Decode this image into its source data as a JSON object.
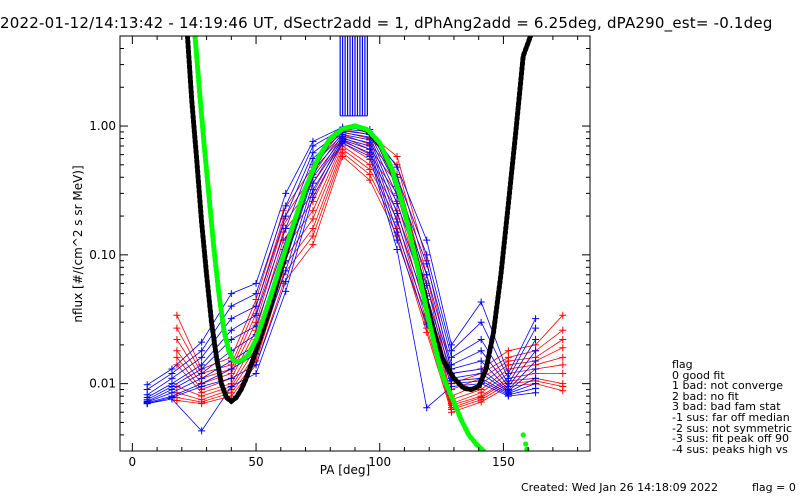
{
  "header": {
    "title": "2022-01-12/14:13:42 - 14:19:46 UT, dSectr2add = 1, dPhAng2add = 6.25deg, dPA290_est=  -0.1deg"
  },
  "footer": {
    "created": "Created: Wed Jan 26 14:18:09 2022",
    "flag": "flag = 0"
  },
  "legend": {
    "title": "flag",
    "items": [
      " 0 good fit",
      " 1 bad: not converge",
      " 2 bad: no fit",
      " 3 bad: bad fam stat",
      "-1 sus: far off median",
      "-2 sus: not symmetric",
      "-3 sus: fit peak off 90",
      "-4 sus: peaks high vs"
    ]
  },
  "chart_data": {
    "type": "line",
    "title": "2022-01-12/14:13:42 - 14:19:46 UT, dSectr2add = 1, dPhAng2add = 6.25deg, dPA290_est=  -0.1deg",
    "xlabel": "PA [deg]",
    "ylabel": "nflux [#/(cm^2 s sr MeV)]",
    "xlim": [
      -5,
      185
    ],
    "ylim": [
      0.003,
      5
    ],
    "yscale": "log",
    "xticks": [
      0,
      50,
      100,
      150
    ],
    "yticks": [
      0.01,
      0.1,
      1.0
    ],
    "xtick_labels": [
      "0",
      "50",
      "100",
      "150"
    ],
    "ytick_labels": [
      "0.01",
      "0.10",
      "1.00"
    ],
    "colors": {
      "red": "#ff0000",
      "blue": "#0000ff",
      "black": "#000000",
      "green": "#00ff00"
    },
    "series": [
      {
        "color": "#ff0000",
        "marker": "+",
        "x": [
          18,
          28,
          40,
          50,
          61,
          73,
          85,
          96,
          107,
          119,
          129,
          141,
          152,
          163,
          174
        ],
        "lines": [
          [
            0.034,
            0.013,
            0.016,
            0.045,
            0.22,
            0.48,
            0.94,
            0.86,
            0.58,
            0.09,
            0.012,
            0.013,
            0.018,
            0.02,
            0.034
          ],
          [
            0.027,
            0.012,
            0.014,
            0.04,
            0.19,
            0.42,
            0.9,
            0.8,
            0.5,
            0.07,
            0.01,
            0.012,
            0.016,
            0.018,
            0.026
          ],
          [
            0.022,
            0.011,
            0.013,
            0.035,
            0.17,
            0.36,
            0.86,
            0.72,
            0.42,
            0.06,
            0.009,
            0.011,
            0.015,
            0.016,
            0.022
          ],
          [
            0.018,
            0.01,
            0.012,
            0.03,
            0.15,
            0.3,
            0.82,
            0.66,
            0.36,
            0.05,
            0.008,
            0.01,
            0.014,
            0.015,
            0.019
          ],
          [
            0.016,
            0.009,
            0.011,
            0.026,
            0.13,
            0.26,
            0.78,
            0.6,
            0.3,
            0.045,
            0.0075,
            0.009,
            0.013,
            0.014,
            0.016
          ],
          [
            0.014,
            0.0085,
            0.01,
            0.022,
            0.11,
            0.22,
            0.74,
            0.55,
            0.26,
            0.04,
            0.007,
            0.0085,
            0.012,
            0.013,
            0.014
          ],
          [
            0.0095,
            0.008,
            0.0095,
            0.019,
            0.09,
            0.19,
            0.7,
            0.5,
            0.22,
            0.035,
            0.0068,
            0.008,
            0.011,
            0.012,
            0.012
          ],
          [
            0.0085,
            0.0075,
            0.009,
            0.017,
            0.08,
            0.16,
            0.66,
            0.46,
            0.19,
            0.03,
            0.0065,
            0.0078,
            0.0105,
            0.011,
            0.01
          ],
          [
            0.0078,
            0.0072,
            0.0085,
            0.015,
            0.07,
            0.14,
            0.62,
            0.42,
            0.16,
            0.027,
            0.0063,
            0.0075,
            0.01,
            0.0105,
            0.0095
          ],
          [
            0.0074,
            0.007,
            0.008,
            0.014,
            0.06,
            0.12,
            0.58,
            0.38,
            0.14,
            0.025,
            0.006,
            0.0072,
            0.0095,
            0.01,
            0.0088
          ]
        ]
      },
      {
        "color": "#0000ff",
        "marker": "+",
        "x": [
          6,
          16,
          28,
          40,
          50,
          62,
          73,
          85,
          96,
          107,
          119,
          129,
          141,
          152,
          163
        ],
        "lines": [
          [
            0.0098,
            0.013,
            0.021,
            0.05,
            0.06,
            0.3,
            0.76,
            0.98,
            0.94,
            0.48,
            0.13,
            0.02,
            0.043,
            0.012,
            0.032
          ],
          [
            0.009,
            0.012,
            0.018,
            0.04,
            0.05,
            0.24,
            0.7,
            0.95,
            0.9,
            0.4,
            0.1,
            0.018,
            0.03,
            0.011,
            0.027
          ],
          [
            0.0082,
            0.011,
            0.016,
            0.032,
            0.04,
            0.2,
            0.62,
            0.92,
            0.86,
            0.34,
            0.085,
            0.016,
            0.022,
            0.01,
            0.022
          ],
          [
            0.0078,
            0.01,
            0.014,
            0.026,
            0.034,
            0.16,
            0.56,
            0.89,
            0.82,
            0.29,
            0.07,
            0.014,
            0.018,
            0.0095,
            0.018
          ],
          [
            0.0075,
            0.0095,
            0.013,
            0.022,
            0.028,
            0.13,
            0.5,
            0.86,
            0.78,
            0.25,
            0.058,
            0.013,
            0.015,
            0.009,
            0.015
          ],
          [
            0.0073,
            0.009,
            0.012,
            0.018,
            0.024,
            0.11,
            0.45,
            0.83,
            0.74,
            0.21,
            0.048,
            0.012,
            0.013,
            0.0088,
            0.013
          ],
          [
            0.0072,
            0.0085,
            0.011,
            0.015,
            0.02,
            0.09,
            0.4,
            0.8,
            0.7,
            0.18,
            0.04,
            0.011,
            0.012,
            0.0086,
            0.011
          ],
          [
            0.0071,
            0.008,
            0.01,
            0.013,
            0.017,
            0.075,
            0.36,
            0.78,
            0.66,
            0.15,
            0.034,
            0.0105,
            0.011,
            0.0084,
            0.01
          ],
          [
            0.007,
            0.0078,
            0.0095,
            0.011,
            0.014,
            0.062,
            0.32,
            0.76,
            0.62,
            0.13,
            0.029,
            0.01,
            0.0105,
            0.0082,
            0.0092
          ],
          [
            0.007,
            0.0076,
            0.0043,
            0.0095,
            0.012,
            0.052,
            0.28,
            0.74,
            0.58,
            0.11,
            0.0065,
            0.0095,
            0.01,
            0.008,
            0.0085
          ]
        ]
      },
      {
        "name": "fit",
        "color": "#000000",
        "style": "thick-dotted",
        "x": [
          22,
          24,
          26,
          28,
          30,
          32,
          34,
          36,
          38,
          40,
          42,
          44,
          46,
          48,
          50,
          55,
          60,
          65,
          70,
          75,
          80,
          85,
          90,
          95,
          100,
          105,
          110,
          115,
          120,
          125,
          130,
          134,
          137,
          140,
          143,
          146,
          149,
          152,
          155,
          158,
          161
        ],
        "y": [
          6.0,
          1.6,
          0.55,
          0.18,
          0.07,
          0.03,
          0.016,
          0.01,
          0.0078,
          0.0073,
          0.0078,
          0.009,
          0.011,
          0.014,
          0.018,
          0.035,
          0.075,
          0.16,
          0.32,
          0.55,
          0.8,
          0.95,
          1.0,
          0.92,
          0.72,
          0.45,
          0.22,
          0.09,
          0.035,
          0.016,
          0.011,
          0.0092,
          0.009,
          0.0095,
          0.013,
          0.025,
          0.07,
          0.25,
          0.9,
          3.5,
          5.0
        ]
      },
      {
        "name": "fit-green",
        "color": "#00ff00",
        "style": "thick-dotted",
        "x": [
          25,
          27,
          29,
          31,
          33,
          35,
          37,
          39,
          41,
          43,
          45,
          47,
          50,
          55,
          60,
          65,
          70,
          75,
          80,
          85,
          90,
          95,
          100,
          105,
          110,
          115,
          120,
          125,
          130,
          133,
          136,
          139,
          142
        ],
        "y": [
          6.0,
          2.0,
          0.72,
          0.28,
          0.11,
          0.05,
          0.026,
          0.018,
          0.015,
          0.0148,
          0.0155,
          0.017,
          0.022,
          0.042,
          0.085,
          0.17,
          0.33,
          0.56,
          0.8,
          0.95,
          1.0,
          0.94,
          0.74,
          0.46,
          0.22,
          0.085,
          0.03,
          0.012,
          0.0072,
          0.0052,
          0.004,
          0.0034,
          0.003
        ],
        "extra_points": [
          [
            158,
            0.004
          ],
          [
            159,
            0.0034
          ],
          [
            159.5,
            0.0031
          ]
        ]
      },
      {
        "name": "peak-bars",
        "color": "#0000ff",
        "style": "vertical-bars",
        "x": [
          84,
          85,
          86,
          87,
          88,
          89,
          90,
          91,
          92,
          93,
          94,
          95
        ],
        "y_from": 1.2,
        "y_to": 5.0
      }
    ]
  }
}
